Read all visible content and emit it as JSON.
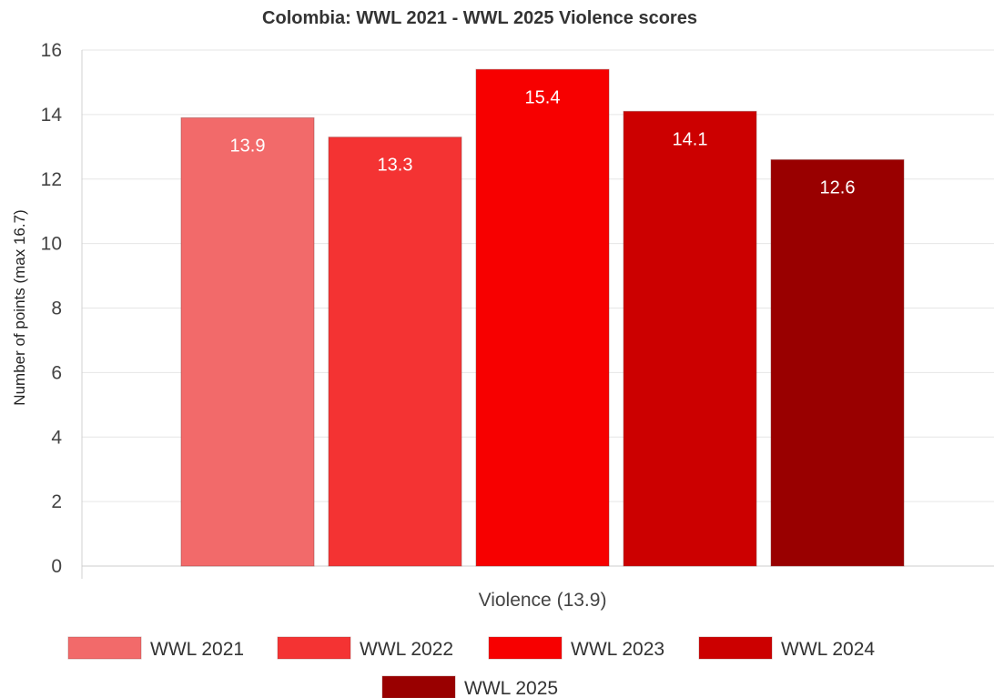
{
  "chart_data": {
    "type": "bar",
    "title": "Colombia: WWL 2021 - WWL 2025 Violence scores",
    "xlabel": "",
    "ylabel": "Number of points (max 16.7)",
    "categories": [
      "Violence (13.9)"
    ],
    "ylim": [
      0,
      16
    ],
    "yticks": [
      0,
      2,
      4,
      6,
      8,
      10,
      12,
      14,
      16
    ],
    "grid": true,
    "legend_position": "bottom",
    "series": [
      {
        "name": "WWL 2021",
        "values": [
          13.9
        ],
        "label": "13.9",
        "color": "#f26a6a"
      },
      {
        "name": "WWL 2022",
        "values": [
          13.3
        ],
        "label": "13.3",
        "color": "#f43333"
      },
      {
        "name": "WWL 2023",
        "values": [
          15.4
        ],
        "label": "15.4",
        "color": "#f70000"
      },
      {
        "name": "WWL 2024",
        "values": [
          14.1
        ],
        "label": "14.1",
        "color": "#cc0000"
      },
      {
        "name": "WWL 2025",
        "values": [
          12.6
        ],
        "label": "12.6",
        "color": "#990000"
      }
    ]
  }
}
